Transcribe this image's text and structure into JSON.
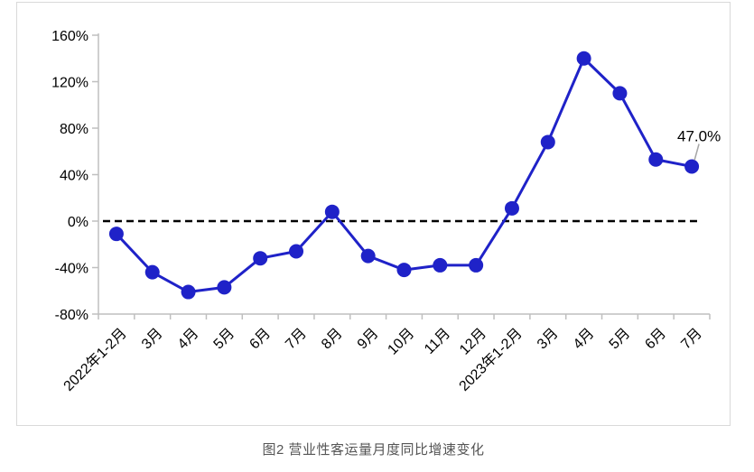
{
  "caption": "图2 营业性客运量月度同比增速变化",
  "chart_data": {
    "type": "line",
    "title": "",
    "xlabel": "",
    "ylabel": "",
    "categories": [
      "2022年1-2月",
      "3月",
      "4月",
      "5月",
      "6月",
      "7月",
      "8月",
      "9月",
      "10月",
      "11月",
      "12月",
      "2023年1-2月",
      "3月",
      "4月",
      "5月",
      "6月",
      "7月"
    ],
    "values": [
      -11,
      -44,
      -61,
      -57,
      -32,
      -26,
      8,
      -30,
      -42,
      -38,
      -38,
      11,
      68,
      140,
      110,
      53,
      47
    ],
    "unit": "%",
    "ylim": [
      -80,
      160
    ],
    "ytick_step": 40,
    "ytick_labels": [
      "160%",
      "120%",
      "80%",
      "40%",
      "0%",
      "-40%",
      "-80%"
    ],
    "grid": false,
    "legend_position": "none",
    "zero_line_style": "dashed",
    "annotation": {
      "index": 16,
      "text": "47.0%"
    },
    "colors": {
      "line": "#1f22c8",
      "marker": "#1f22c8",
      "axis": "#bfbfbf",
      "frame_border": "#d9d9d9",
      "zero_line": "#000000",
      "tick_label": "#000000",
      "annotation_text": "#000000",
      "annotation_leader": "#a6a6a6"
    }
  }
}
